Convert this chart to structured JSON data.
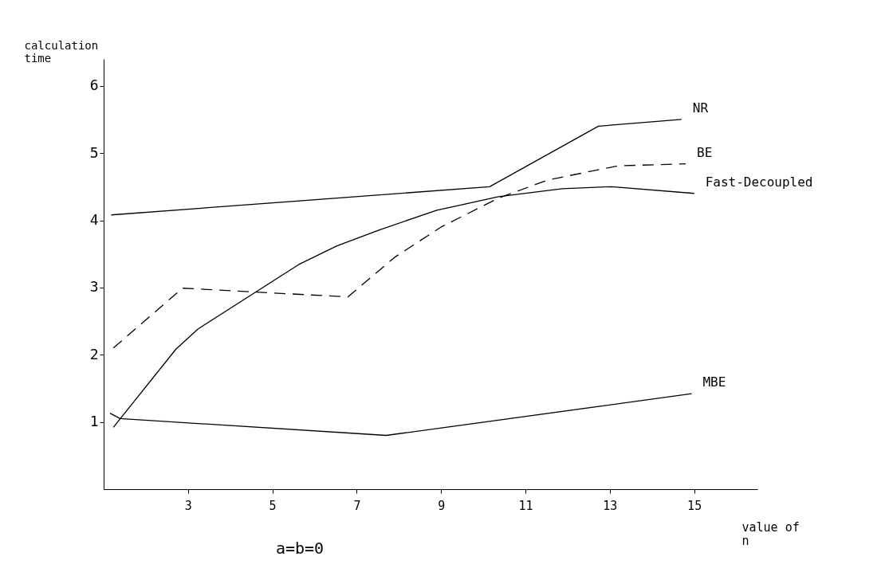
{
  "chart_data": {
    "type": "line",
    "xlabel": "value of n",
    "ylabel": "calculation time",
    "annotations": [
      "a=b=0"
    ],
    "xlim": [
      1,
      16.5
    ],
    "xticks": [
      3,
      5,
      7,
      9,
      11,
      13,
      15
    ],
    "ylim": [
      0,
      6.4
    ],
    "yticks": [
      1,
      2,
      3,
      4,
      5,
      6
    ],
    "marker": "none",
    "series": [
      {
        "name": "NR",
        "color": "#000000",
        "line_style": "solid",
        "x": [
          1.18,
          10.15,
          12.73,
          14.7
        ],
        "values": [
          4.08,
          4.5,
          5.4,
          5.5
        ]
      },
      {
        "name": "BE",
        "color": "#000000",
        "line_style": "dashed",
        "x": [
          1.23,
          2.87,
          6.79,
          7.9,
          9.0,
          10.36,
          11.53,
          13.2,
          14.8
        ],
        "values": [
          2.1,
          2.99,
          2.86,
          3.45,
          3.9,
          4.33,
          4.6,
          4.81,
          4.84
        ]
      },
      {
        "name": "Fast-Decoupled",
        "color": "#000000",
        "line_style": "solid",
        "x": [
          1.23,
          2.71,
          3.23,
          5.62,
          6.53,
          7.55,
          8.9,
          10.36,
          11.87,
          13.05,
          15.0
        ],
        "values": [
          0.92,
          2.08,
          2.38,
          3.34,
          3.62,
          3.86,
          4.15,
          4.35,
          4.47,
          4.5,
          4.4
        ]
      },
      {
        "name": "MBE",
        "color": "#000000",
        "line_style": "solid",
        "x": [
          1.15,
          1.39,
          7.7,
          14.94
        ],
        "values": [
          1.13,
          1.05,
          0.8,
          1.42
        ]
      }
    ]
  }
}
